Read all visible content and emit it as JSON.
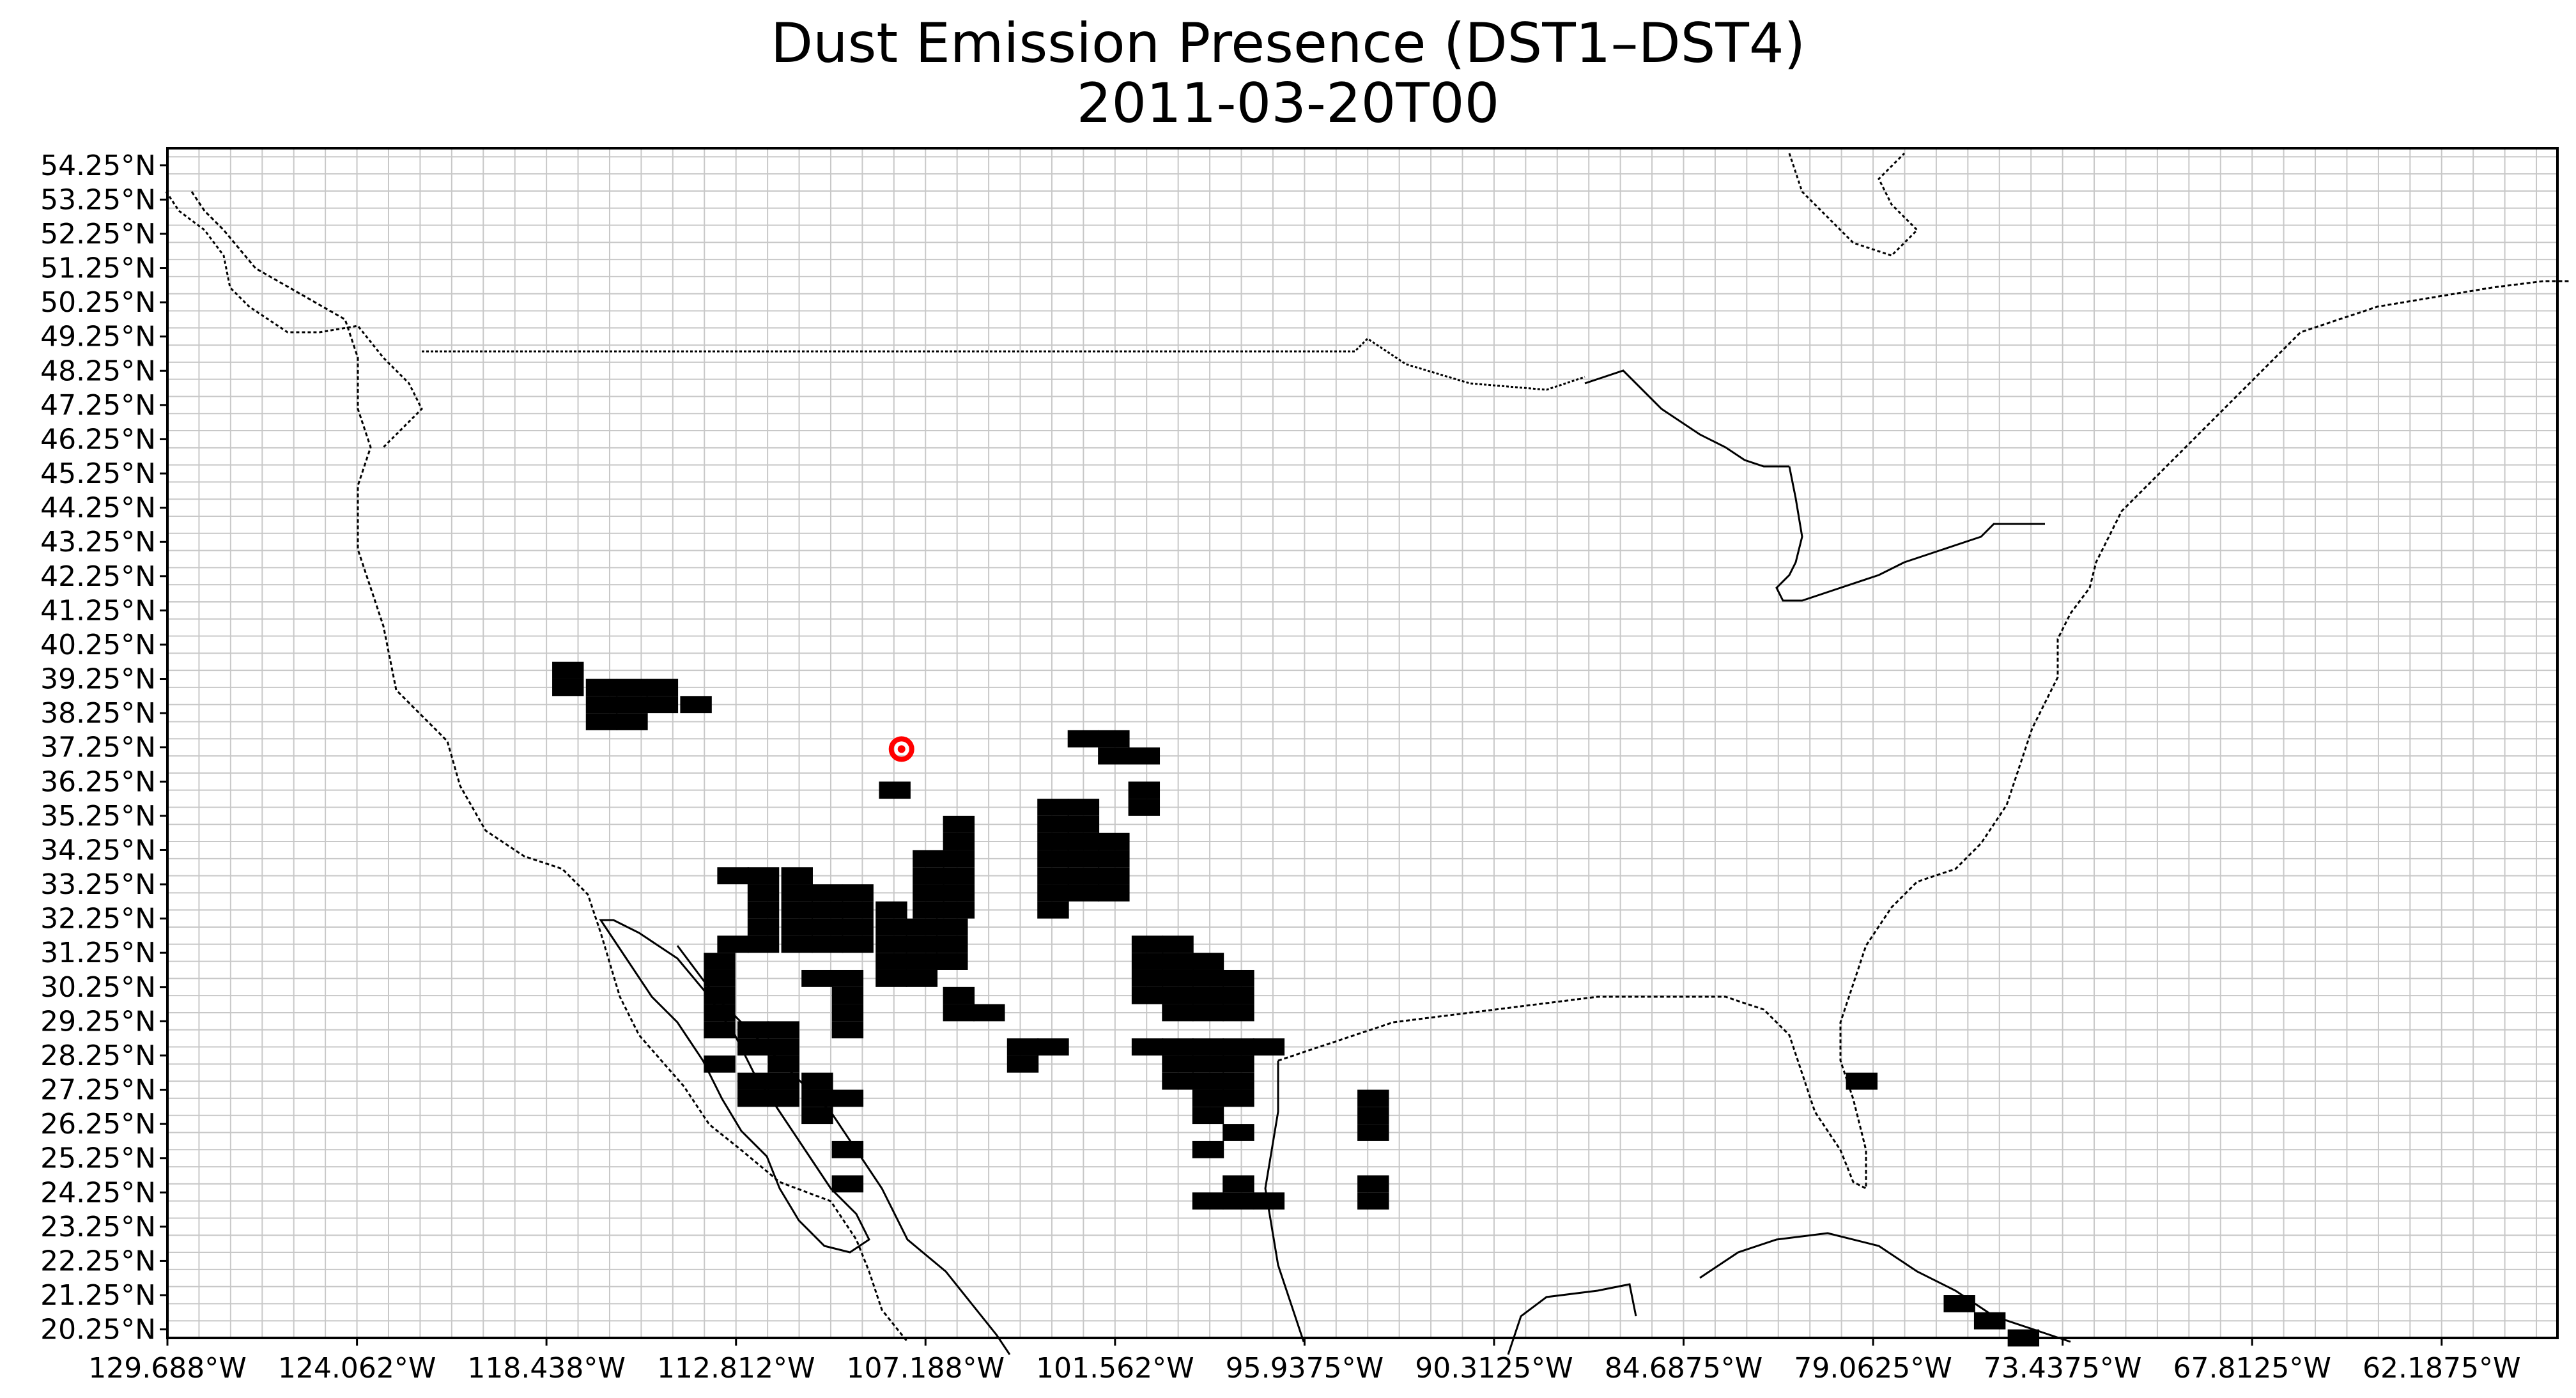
{
  "title": "Dust Emission Presence (DST1–DST4)",
  "subtitle": "2011-03-20T00",
  "map": {
    "lon_range": [
      -129.688,
      -58.75
    ],
    "lat_range": [
      20.0,
      54.75
    ],
    "grid_lon_step": 0.9375,
    "grid_lat_step": 0.5,
    "y_ticks": [
      {
        "lat": 54.25,
        "label": "54.25°N"
      },
      {
        "lat": 53.25,
        "label": "53.25°N"
      },
      {
        "lat": 52.25,
        "label": "52.25°N"
      },
      {
        "lat": 51.25,
        "label": "51.25°N"
      },
      {
        "lat": 50.25,
        "label": "50.25°N"
      },
      {
        "lat": 49.25,
        "label": "49.25°N"
      },
      {
        "lat": 48.25,
        "label": "48.25°N"
      },
      {
        "lat": 47.25,
        "label": "47.25°N"
      },
      {
        "lat": 46.25,
        "label": "46.25°N"
      },
      {
        "lat": 45.25,
        "label": "45.25°N"
      },
      {
        "lat": 44.25,
        "label": "44.25°N"
      },
      {
        "lat": 43.25,
        "label": "43.25°N"
      },
      {
        "lat": 42.25,
        "label": "42.25°N"
      },
      {
        "lat": 41.25,
        "label": "41.25°N"
      },
      {
        "lat": 40.25,
        "label": "40.25°N"
      },
      {
        "lat": 39.25,
        "label": "39.25°N"
      },
      {
        "lat": 38.25,
        "label": "38.25°N"
      },
      {
        "lat": 37.25,
        "label": "37.25°N"
      },
      {
        "lat": 36.25,
        "label": "36.25°N"
      },
      {
        "lat": 35.25,
        "label": "35.25°N"
      },
      {
        "lat": 34.25,
        "label": "34.25°N"
      },
      {
        "lat": 33.25,
        "label": "33.25°N"
      },
      {
        "lat": 32.25,
        "label": "32.25°N"
      },
      {
        "lat": 31.25,
        "label": "31.25°N"
      },
      {
        "lat": 30.25,
        "label": "30.25°N"
      },
      {
        "lat": 29.25,
        "label": "29.25°N"
      },
      {
        "lat": 28.25,
        "label": "28.25°N"
      },
      {
        "lat": 27.25,
        "label": "27.25°N"
      },
      {
        "lat": 26.25,
        "label": "26.25°N"
      },
      {
        "lat": 25.25,
        "label": "25.25°N"
      },
      {
        "lat": 24.25,
        "label": "24.25°N"
      },
      {
        "lat": 23.25,
        "label": "23.25°N"
      },
      {
        "lat": 22.25,
        "label": "22.25°N"
      },
      {
        "lat": 21.25,
        "label": "21.25°N"
      },
      {
        "lat": 20.25,
        "label": "20.25°N"
      }
    ],
    "x_ticks": [
      {
        "lon": -129.688,
        "label": "129.688°W"
      },
      {
        "lon": -124.062,
        "label": "124.062°W"
      },
      {
        "lon": -118.438,
        "label": "118.438°W"
      },
      {
        "lon": -112.812,
        "label": "112.812°W"
      },
      {
        "lon": -107.188,
        "label": "107.188°W"
      },
      {
        "lon": -101.562,
        "label": "101.562°W"
      },
      {
        "lon": -95.9375,
        "label": "95.9375°W"
      },
      {
        "lon": -90.3125,
        "label": "90.3125°W"
      },
      {
        "lon": -84.6875,
        "label": "84.6875°W"
      },
      {
        "lon": -79.0625,
        "label": "79.0625°W"
      },
      {
        "lon": -73.4375,
        "label": "73.4375°W"
      },
      {
        "lon": -67.8125,
        "label": "67.8125°W"
      },
      {
        "lon": -62.1875,
        "label": "62.1875°W"
      }
    ],
    "dust_cells": [
      [
        -117.8,
        39.5
      ],
      [
        -117.8,
        39.0
      ],
      [
        -116.8,
        39.0
      ],
      [
        -116.8,
        38.5
      ],
      [
        -115.9,
        39.0
      ],
      [
        -115.9,
        38.5
      ],
      [
        -115.0,
        39.0
      ],
      [
        -115.0,
        38.5
      ],
      [
        -116.8,
        38.0
      ],
      [
        -115.9,
        38.0
      ],
      [
        -114.0,
        38.5
      ],
      [
        -108.1,
        36.0
      ],
      [
        -102.5,
        37.5
      ],
      [
        -101.6,
        37.5
      ],
      [
        -101.6,
        37.0
      ],
      [
        -100.7,
        37.0
      ],
      [
        -100.7,
        36.0
      ],
      [
        -100.7,
        35.5
      ],
      [
        -106.2,
        35.0
      ],
      [
        -106.2,
        34.5
      ],
      [
        -107.1,
        34.0
      ],
      [
        -106.2,
        34.0
      ],
      [
        -107.1,
        33.5
      ],
      [
        -106.2,
        33.5
      ],
      [
        -107.1,
        33.0
      ],
      [
        -106.2,
        33.0
      ],
      [
        -107.1,
        32.5
      ],
      [
        -106.2,
        32.5
      ],
      [
        -103.4,
        35.5
      ],
      [
        -102.5,
        35.5
      ],
      [
        -103.4,
        35.0
      ],
      [
        -102.5,
        35.0
      ],
      [
        -103.4,
        34.5
      ],
      [
        -102.5,
        34.5
      ],
      [
        -101.6,
        34.5
      ],
      [
        -103.4,
        34.0
      ],
      [
        -102.5,
        34.0
      ],
      [
        -101.6,
        34.0
      ],
      [
        -103.4,
        33.5
      ],
      [
        -102.5,
        33.5
      ],
      [
        -101.6,
        33.5
      ],
      [
        -103.4,
        33.0
      ],
      [
        -102.5,
        33.0
      ],
      [
        -101.6,
        33.0
      ],
      [
        -103.4,
        32.5
      ],
      [
        -112.9,
        33.5
      ],
      [
        -112.0,
        33.5
      ],
      [
        -111.0,
        33.5
      ],
      [
        -112.0,
        33.0
      ],
      [
        -111.0,
        33.0
      ],
      [
        -110.1,
        33.0
      ],
      [
        -109.2,
        33.0
      ],
      [
        -112.0,
        32.5
      ],
      [
        -111.0,
        32.5
      ],
      [
        -110.1,
        32.5
      ],
      [
        -109.2,
        32.5
      ],
      [
        -108.2,
        32.5
      ],
      [
        -112.0,
        32.0
      ],
      [
        -111.0,
        32.0
      ],
      [
        -110.1,
        32.0
      ],
      [
        -109.2,
        32.0
      ],
      [
        -108.2,
        32.0
      ],
      [
        -107.3,
        32.0
      ],
      [
        -106.4,
        32.0
      ],
      [
        -112.9,
        31.5
      ],
      [
        -112.0,
        31.5
      ],
      [
        -111.0,
        31.5
      ],
      [
        -110.1,
        31.5
      ],
      [
        -109.2,
        31.5
      ],
      [
        -108.2,
        31.5
      ],
      [
        -107.3,
        31.5
      ],
      [
        -106.4,
        31.5
      ],
      [
        -108.2,
        31.0
      ],
      [
        -107.3,
        31.0
      ],
      [
        -106.4,
        31.0
      ],
      [
        -108.2,
        30.5
      ],
      [
        -107.3,
        30.5
      ],
      [
        -106.2,
        30.0
      ],
      [
        -106.2,
        29.5
      ],
      [
        -105.3,
        29.5
      ],
      [
        -104.3,
        28.5
      ],
      [
        -103.4,
        28.5
      ],
      [
        -104.3,
        28.0
      ],
      [
        -100.6,
        31.5
      ],
      [
        -99.7,
        31.5
      ],
      [
        -100.6,
        31.0
      ],
      [
        -99.7,
        31.0
      ],
      [
        -98.8,
        31.0
      ],
      [
        -100.6,
        30.5
      ],
      [
        -99.7,
        30.5
      ],
      [
        -98.8,
        30.5
      ],
      [
        -97.9,
        30.5
      ],
      [
        -100.6,
        30.0
      ],
      [
        -99.7,
        30.0
      ],
      [
        -98.8,
        30.0
      ],
      [
        -97.9,
        30.0
      ],
      [
        -99.7,
        29.5
      ],
      [
        -98.8,
        29.5
      ],
      [
        -97.9,
        29.5
      ],
      [
        -100.6,
        28.5
      ],
      [
        -99.7,
        28.5
      ],
      [
        -98.8,
        28.5
      ],
      [
        -97.9,
        28.5
      ],
      [
        -97.0,
        28.5
      ],
      [
        -99.7,
        28.0
      ],
      [
        -98.8,
        28.0
      ],
      [
        -97.9,
        28.0
      ],
      [
        -99.7,
        27.5
      ],
      [
        -98.8,
        27.5
      ],
      [
        -97.9,
        27.5
      ],
      [
        -98.8,
        27.0
      ],
      [
        -97.9,
        27.0
      ],
      [
        -98.8,
        26.5
      ],
      [
        -97.9,
        26.0
      ],
      [
        -98.8,
        25.5
      ],
      [
        -97.9,
        24.5
      ],
      [
        -98.8,
        24.0
      ],
      [
        -97.9,
        24.0
      ],
      [
        -97.0,
        24.0
      ],
      [
        -93.9,
        27.0
      ],
      [
        -93.9,
        26.5
      ],
      [
        -93.9,
        26.0
      ],
      [
        -93.9,
        24.5
      ],
      [
        -93.9,
        24.0
      ],
      [
        -113.3,
        31.0
      ],
      [
        -113.3,
        30.5
      ],
      [
        -113.3,
        30.0
      ],
      [
        -113.3,
        29.5
      ],
      [
        -113.3,
        29.0
      ],
      [
        -112.3,
        29.0
      ],
      [
        -111.4,
        29.0
      ],
      [
        -112.3,
        28.5
      ],
      [
        -111.4,
        28.5
      ],
      [
        -110.4,
        30.5
      ],
      [
        -109.5,
        30.5
      ],
      [
        -109.5,
        30.0
      ],
      [
        -109.5,
        29.5
      ],
      [
        -109.5,
        29.0
      ],
      [
        -113.3,
        28.0
      ],
      [
        -112.3,
        27.5
      ],
      [
        -111.4,
        27.5
      ],
      [
        -110.4,
        27.5
      ],
      [
        -112.3,
        27.0
      ],
      [
        -111.4,
        27.0
      ],
      [
        -110.4,
        27.0
      ],
      [
        -109.5,
        27.0
      ],
      [
        -110.4,
        26.5
      ],
      [
        -109.5,
        25.5
      ],
      [
        -109.5,
        24.5
      ],
      [
        -111.4,
        28.0
      ],
      [
        -79.4,
        27.5
      ],
      [
        -76.5,
        21.0
      ],
      [
        -75.6,
        20.5
      ],
      [
        -74.6,
        20.0
      ]
    ],
    "marker": {
      "lon": -107.9,
      "lat": 37.2,
      "color": "#ff0000"
    }
  }
}
